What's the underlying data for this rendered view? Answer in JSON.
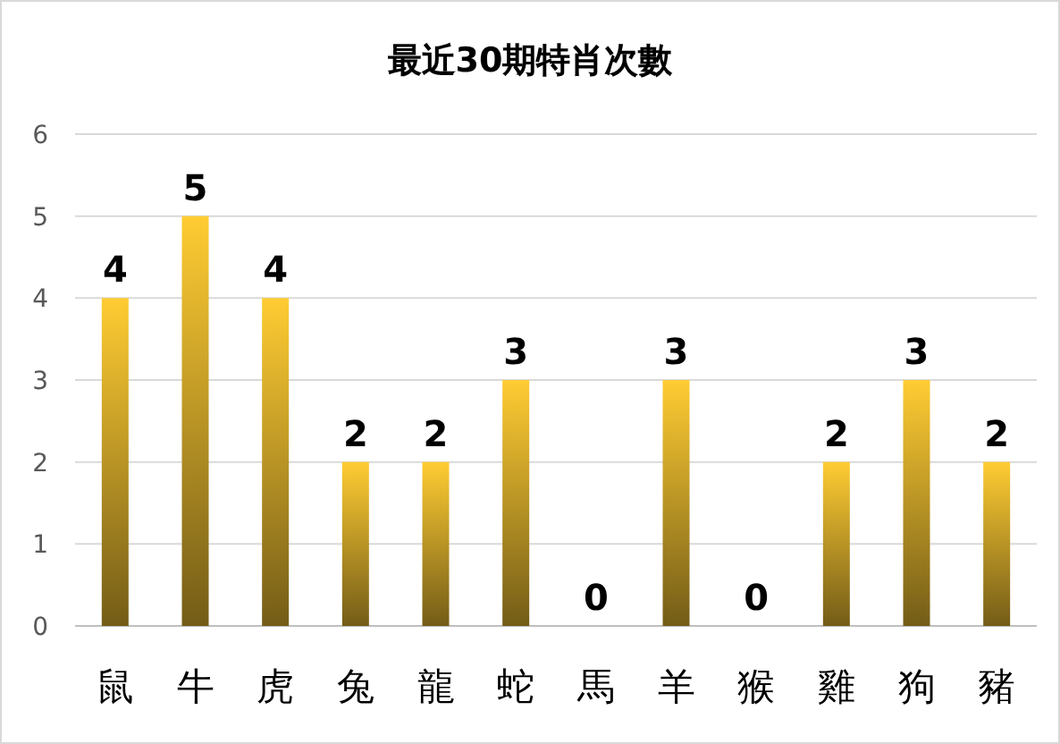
{
  "chart_data": {
    "type": "bar",
    "title": "最近30期特肖次數",
    "categories": [
      "鼠",
      "牛",
      "虎",
      "兔",
      "龍",
      "蛇",
      "馬",
      "羊",
      "猴",
      "雞",
      "狗",
      "豬"
    ],
    "values": [
      4,
      5,
      4,
      2,
      2,
      3,
      0,
      3,
      0,
      2,
      3,
      2
    ],
    "color": "#ffcc33",
    "ylim": [
      0,
      6
    ],
    "yticks": [
      0,
      1,
      2,
      3,
      4,
      5,
      6
    ],
    "grid": "y",
    "data_labels": true
  }
}
